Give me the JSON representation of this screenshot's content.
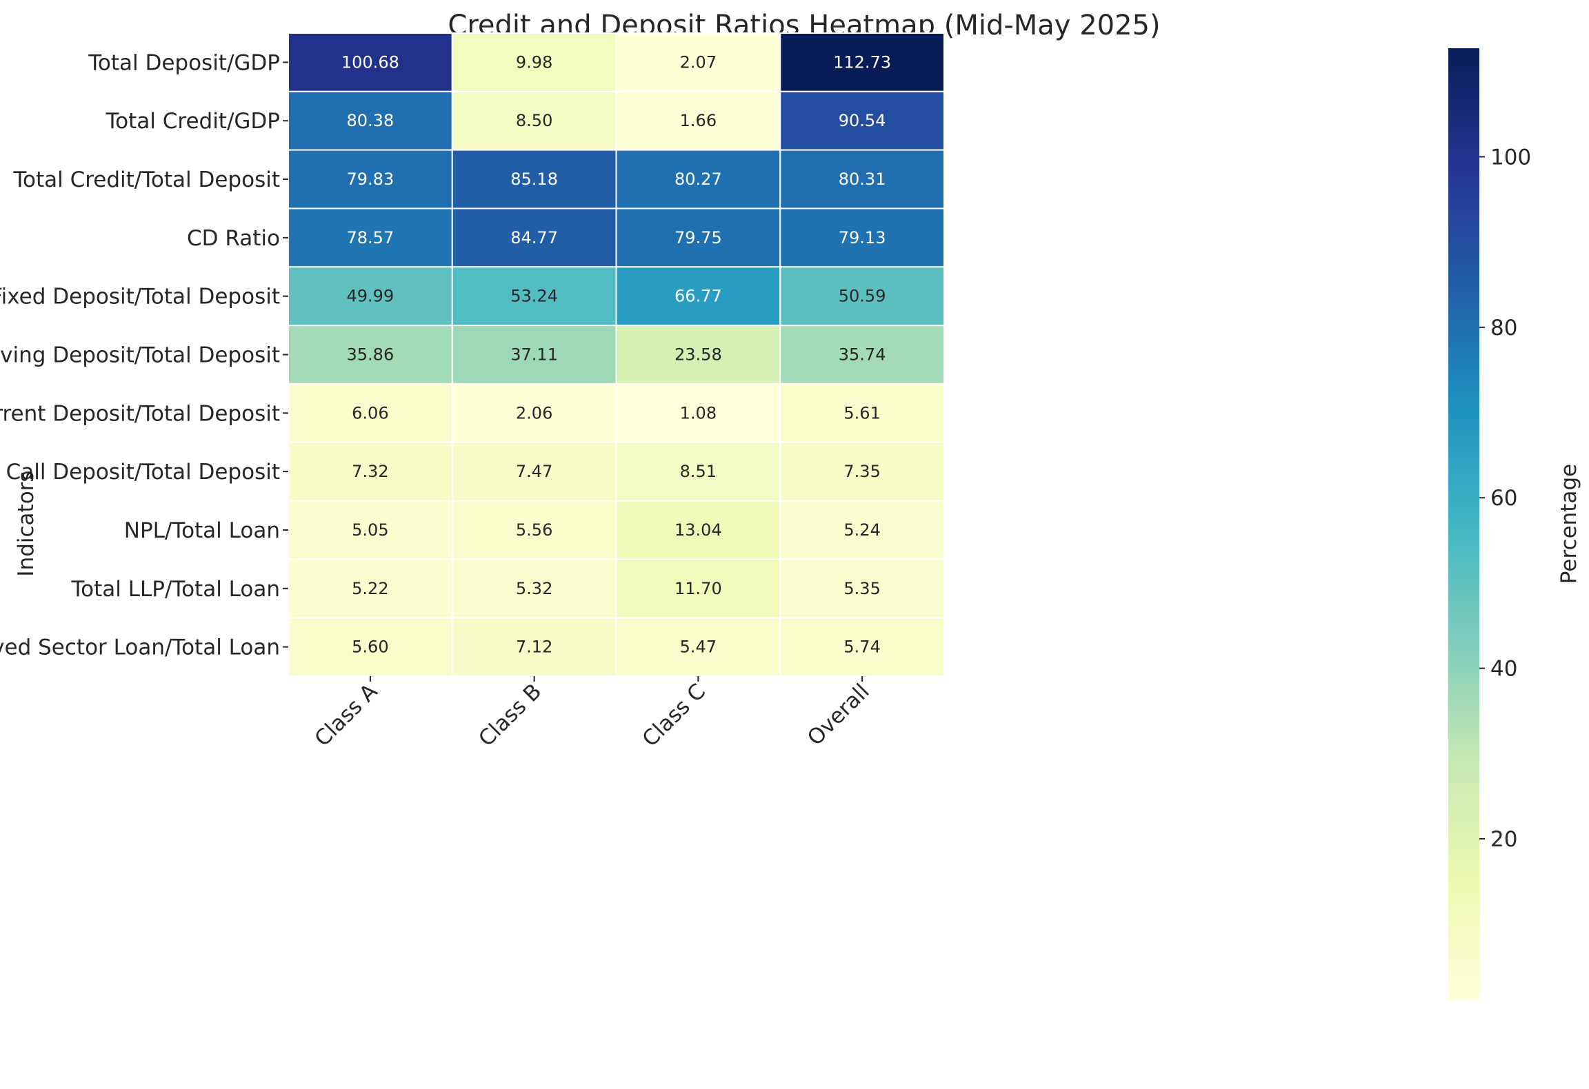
{
  "chart_data": {
    "type": "heatmap",
    "title": "Credit and Deposit Ratios Heatmap (Mid-May 2025)",
    "xlabel": "",
    "ylabel": "Indicators",
    "colorbar_label": "Percentage",
    "colormap": "YlGnBu",
    "vmin": 1.08,
    "vmax": 112.73,
    "colorbar_ticks": [
      20,
      40,
      60,
      80,
      100
    ],
    "columns": [
      "Class A",
      "Class B",
      "Class C",
      "Overall"
    ],
    "rows": [
      {
        "label": "Total Deposit/GDP",
        "values": [
          100.68,
          9.98,
          2.07,
          112.73
        ]
      },
      {
        "label": "Total Credit/GDP",
        "values": [
          80.38,
          8.5,
          1.66,
          90.54
        ]
      },
      {
        "label": "Total Credit/Total Deposit",
        "values": [
          79.83,
          85.18,
          80.27,
          80.31
        ]
      },
      {
        "label": "CD Ratio",
        "values": [
          78.57,
          84.77,
          79.75,
          79.13
        ]
      },
      {
        "label": "Fixed Deposit/Total Deposit",
        "values": [
          49.99,
          53.24,
          66.77,
          50.59
        ]
      },
      {
        "label": "Saving Deposit/Total Deposit",
        "values": [
          35.86,
          37.11,
          23.58,
          35.74
        ]
      },
      {
        "label": "Current Deposit/Total Deposit",
        "values": [
          6.06,
          2.06,
          1.08,
          5.61
        ]
      },
      {
        "label": "Call Deposit/Total Deposit",
        "values": [
          7.32,
          7.47,
          8.51,
          7.35
        ]
      },
      {
        "label": "NPL/Total Loan",
        "values": [
          5.05,
          5.56,
          13.04,
          5.24
        ]
      },
      {
        "label": "Total LLP/Total Loan",
        "values": [
          5.22,
          5.32,
          11.7,
          5.35
        ]
      },
      {
        "label": "Deprived Sector Loan/Total Loan",
        "values": [
          5.6,
          7.12,
          5.47,
          5.74
        ]
      }
    ]
  }
}
